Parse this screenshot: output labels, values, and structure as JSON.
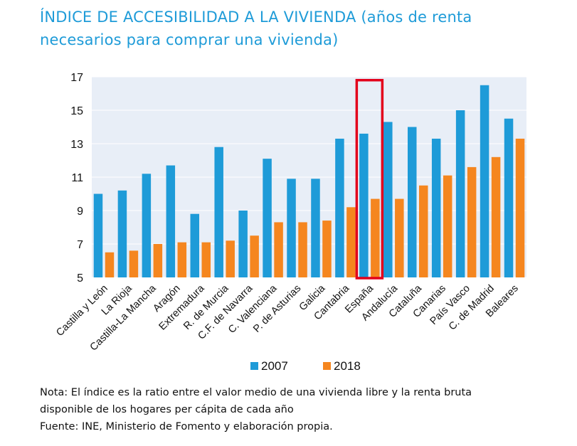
{
  "title": {
    "line1": "ÍNDICE DE ACCESIBILIDAD A LA VIVIENDA (años de renta",
    "line2": "necesarios para comprar una vivienda)"
  },
  "chart_data": {
    "type": "bar",
    "categories": [
      "Castilla y León",
      "La Rioja",
      "Castilla-La Mancha",
      "Aragón",
      "Extremadura",
      "R. de Murcia",
      "C.F. de Navarra",
      "C. Valenciana",
      "P. de Asturias",
      "Galicia",
      "Cantabria",
      "España",
      "Andalucía",
      "Cataluña",
      "Canarias",
      "País Vasco",
      "C. de Madrid",
      "Baleares"
    ],
    "series": [
      {
        "name": "2007",
        "color": "#1e9bd8",
        "values": [
          10.0,
          10.2,
          11.2,
          11.7,
          8.8,
          12.8,
          9.0,
          12.1,
          10.9,
          10.9,
          13.3,
          13.6,
          14.3,
          14.0,
          13.3,
          15.0,
          16.5,
          14.5
        ]
      },
      {
        "name": "2018",
        "color": "#f5861f",
        "values": [
          6.5,
          6.6,
          7.0,
          7.1,
          7.1,
          7.2,
          7.5,
          8.3,
          8.3,
          8.4,
          9.2,
          9.7,
          9.7,
          10.5,
          11.1,
          11.6,
          12.2,
          13.3
        ]
      }
    ],
    "y_ticks": [
      5,
      7,
      9,
      11,
      13,
      15,
      17
    ],
    "ylim": [
      5,
      17
    ],
    "grid": true,
    "highlight_category": "España",
    "highlight_color": "#e3001b",
    "plot_background": "#e8eef7",
    "legend_position": "bottom"
  },
  "notes": {
    "line1": "Nota: El índice es la ratio entre el valor medio de una vivienda libre y la renta bruta",
    "line2": "disponible de los hogares per cápita de cada año",
    "line3": "Fuente: INE, Ministerio de Fomento y elaboración propia."
  }
}
